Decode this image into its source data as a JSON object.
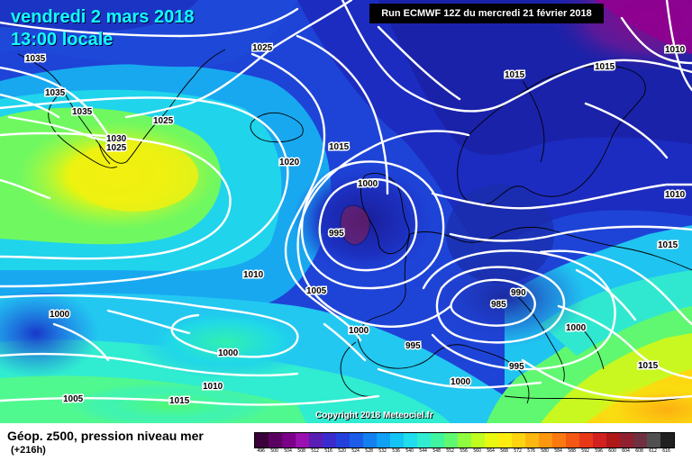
{
  "title": {
    "line1": "vendredi 2 mars 2018",
    "line2": "13:00 locale"
  },
  "run_info": "Run ECMWF 12Z du mercredi 21 février 2018",
  "copyright": "Copyright 2018 Meteociel.fr",
  "footer": {
    "title": "Géop. z500, pression niveau mer",
    "subtitle": "(+216h)"
  },
  "colors": {
    "title_text": "#11ffff",
    "isobar": "#ffffff",
    "label_text": "#000000"
  },
  "legend_scale": {
    "values": [
      "496",
      "500",
      "504",
      "508",
      "512",
      "516",
      "520",
      "524",
      "528",
      "532",
      "536",
      "540",
      "544",
      "548",
      "552",
      "556",
      "560",
      "564",
      "568",
      "572",
      "576",
      "580",
      "584",
      "588",
      "592",
      "596",
      "600",
      "604",
      "608",
      "612",
      "616"
    ],
    "colors": [
      "#3a003a",
      "#5a0060",
      "#7a0088",
      "#9a10b0",
      "#5a1eb4",
      "#3a2ccc",
      "#2440dc",
      "#1c5ce8",
      "#1480f0",
      "#10a0f4",
      "#14c4f4",
      "#20dcec",
      "#30ecd0",
      "#40f4a0",
      "#60f870",
      "#90fc40",
      "#c0fc20",
      "#e8f810",
      "#fcec10",
      "#fcd410",
      "#fcb810",
      "#fc9810",
      "#fc7810",
      "#f45814",
      "#e83818",
      "#d02020",
      "#b01818",
      "#902030",
      "#703040",
      "#505050",
      "#202020"
    ]
  },
  "pressure_labels": [
    {
      "text": "1035"
    },
    {
      "text": "1025"
    },
    {
      "text": "1035"
    },
    {
      "text": "1035"
    },
    {
      "text": "1025"
    },
    {
      "text": "1030"
    },
    {
      "text": "1025"
    },
    {
      "text": "1015"
    },
    {
      "text": "1020"
    },
    {
      "text": "1000"
    },
    {
      "text": "995"
    },
    {
      "text": "1010"
    },
    {
      "text": "1005"
    },
    {
      "text": "1000"
    },
    {
      "text": "1000"
    },
    {
      "text": "1000"
    },
    {
      "text": "995"
    },
    {
      "text": "1010"
    },
    {
      "text": "1005"
    },
    {
      "text": "1015"
    },
    {
      "text": "1000"
    },
    {
      "text": "985"
    },
    {
      "text": "990"
    },
    {
      "text": "995"
    },
    {
      "text": "1000"
    },
    {
      "text": "1015"
    },
    {
      "text": "1015"
    },
    {
      "text": "1015"
    },
    {
      "text": "1010"
    },
    {
      "text": "1010"
    },
    {
      "text": "1015"
    }
  ],
  "icons": {
    "map": "weather-map-graphic"
  }
}
